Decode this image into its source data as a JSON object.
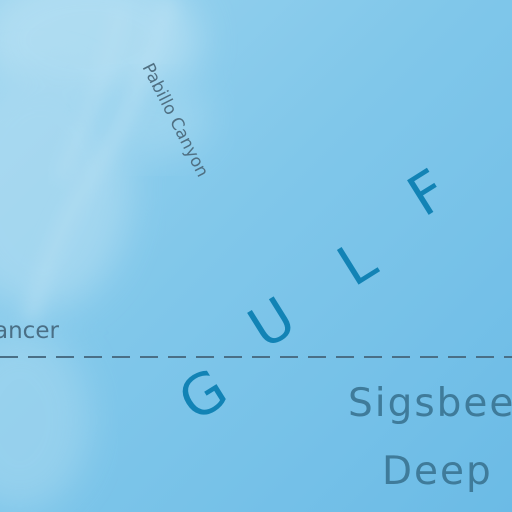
{
  "map": {
    "colors": {
      "water_light": "#9ad3ee",
      "water_mid": "#7fc6e8",
      "water_deep": "#6bbbe6",
      "shelf_highlight": "#c4e6f5",
      "gulf_label": "#1283b5",
      "feature_label": "#4f6f82",
      "deep_label": "#3f7b9a",
      "cancer_line": "#4a6f86"
    },
    "labels": {
      "gulf_letters": [
        "G",
        "U",
        "L",
        "F"
      ],
      "canyon": "Pabillo Canyon",
      "tropic": "ancer",
      "deep_line_1": "Sigsbee",
      "deep_line_2": "Deep"
    },
    "tropic_line_style": "dashed"
  }
}
